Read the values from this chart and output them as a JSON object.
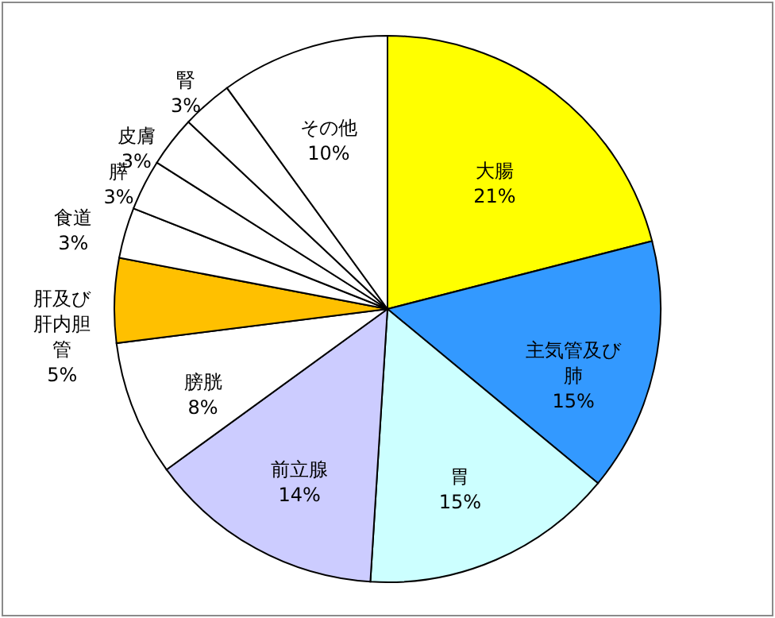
{
  "chart_data": {
    "type": "pie",
    "categories": [
      "大腸",
      "主気管及び肺",
      "胃",
      "前立腺",
      "膀胱",
      "肝及び肝内胆管",
      "食道",
      "膵",
      "皮膚",
      "腎",
      "その他"
    ],
    "values": [
      21,
      15,
      15,
      14,
      8,
      5,
      3,
      3,
      3,
      3,
      10
    ],
    "value_labels": [
      "21%",
      "15%",
      "15%",
      "14%",
      "8%",
      "5%",
      "3%",
      "3%",
      "3%",
      "3%",
      "10%"
    ],
    "colors": [
      "#ffff00",
      "#3399ff",
      "#ccffff",
      "#ccccff",
      "#ffffff",
      "#ffc000",
      "#ffffff",
      "#ffffff",
      "#ffffff",
      "#ffffff",
      "#ffffff"
    ]
  }
}
